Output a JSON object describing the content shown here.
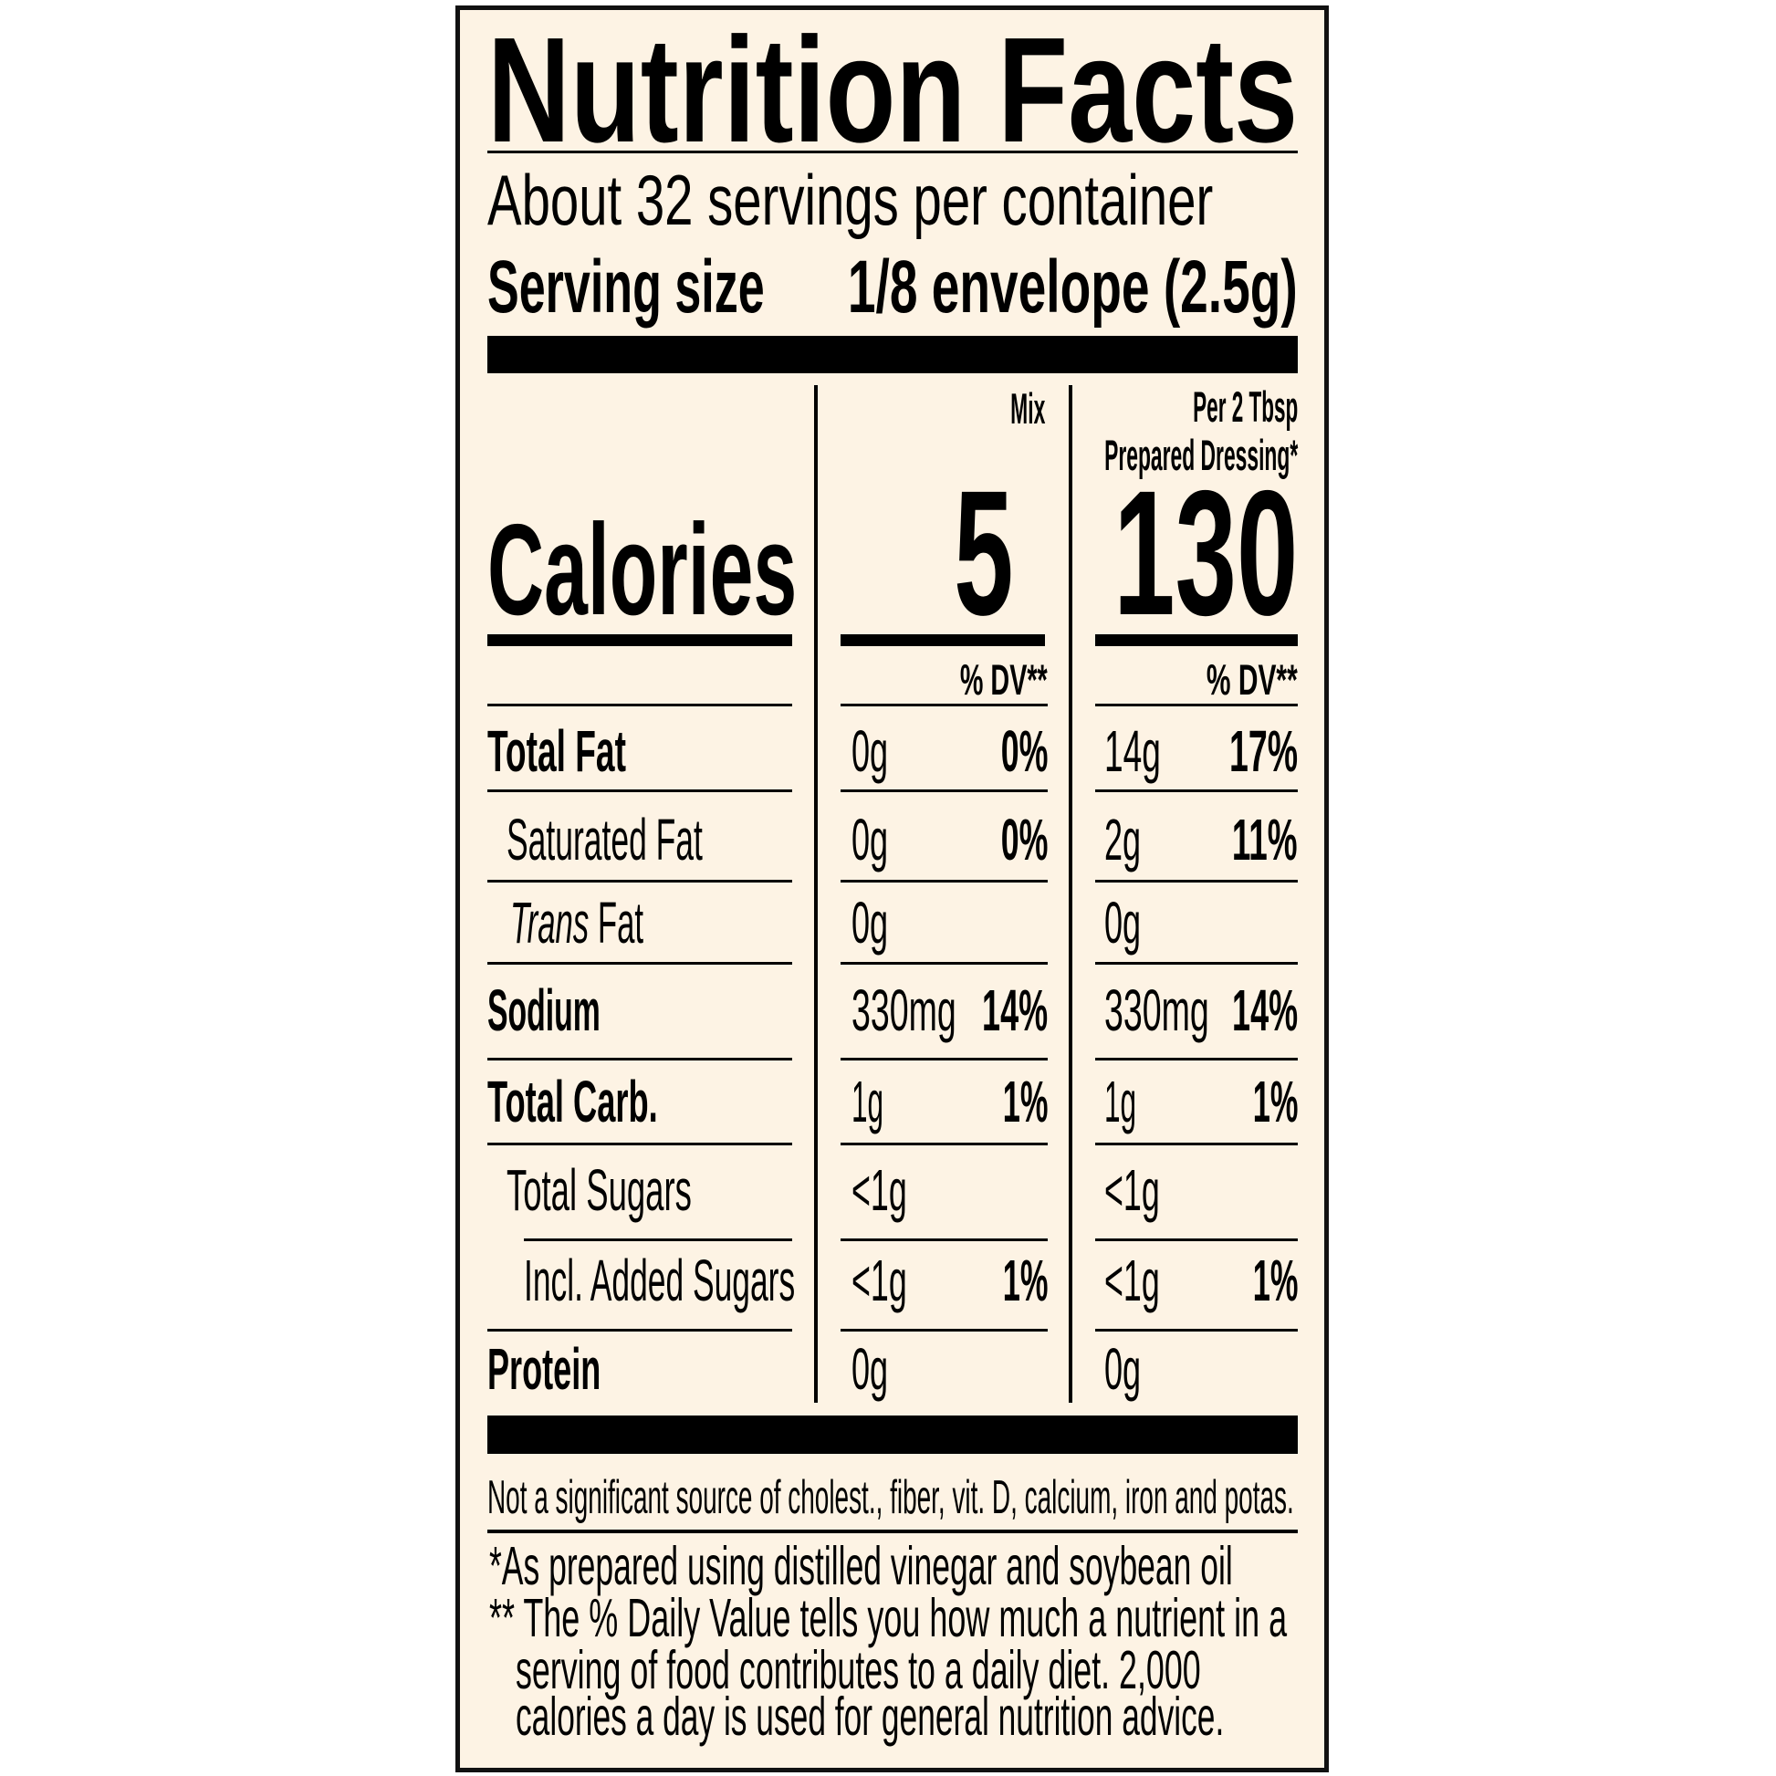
{
  "title": "Nutrition Facts",
  "servings_per_container": "About 32 servings per container",
  "serving_size": {
    "label": "Serving size",
    "value": "1/8 envelope (2.5g)"
  },
  "columns": {
    "mix": {
      "header": "Mix",
      "calories": "5",
      "dv_header": "% DV**"
    },
    "prepared": {
      "header_line1": "Per 2 Tbsp",
      "header_line2": "Prepared Dressing*",
      "calories": "130",
      "dv_header": "% DV**"
    }
  },
  "calories_label": "Calories",
  "rows": [
    {
      "label": "Total Fat",
      "mix_amount": "0g",
      "mix_dv": "0%",
      "prep_amount": "14g",
      "prep_dv": "17%"
    },
    {
      "label": "Saturated Fat",
      "mix_amount": "0g",
      "mix_dv": "0%",
      "prep_amount": "2g",
      "prep_dv": "11%"
    },
    {
      "label_italic": "Trans",
      "label": " Fat",
      "mix_amount": "0g",
      "mix_dv": "",
      "prep_amount": "0g",
      "prep_dv": ""
    },
    {
      "label": "Sodium",
      "mix_amount": "330mg",
      "mix_dv": "14%",
      "prep_amount": "330mg",
      "prep_dv": "14%"
    },
    {
      "label": "Total Carb.",
      "mix_amount": "1g",
      "mix_dv": "1%",
      "prep_amount": "1g",
      "prep_dv": "1%"
    },
    {
      "label": "Total Sugars",
      "mix_amount": "<1g",
      "mix_dv": "",
      "prep_amount": "<1g",
      "prep_dv": ""
    },
    {
      "label": "Incl. Added Sugars",
      "mix_amount": "<1g",
      "mix_dv": "1%",
      "prep_amount": "<1g",
      "prep_dv": "1%"
    },
    {
      "label": "Protein",
      "mix_amount": "0g",
      "mix_dv": "",
      "prep_amount": "0g",
      "prep_dv": ""
    }
  ],
  "not_significant": "Not a significant source of cholest., fiber, vit. D, calcium, iron and potas.",
  "footnotes": [
    "*As prepared using distilled vinegar and soybean oil",
    "** The % Daily Value tells you how much a nutrient in a",
    "serving of food contributes to a daily diet. 2,000",
    "calories a day is used for general nutrition advice."
  ],
  "colors": {
    "background": "#fdf3e4",
    "ink": "#000000"
  }
}
